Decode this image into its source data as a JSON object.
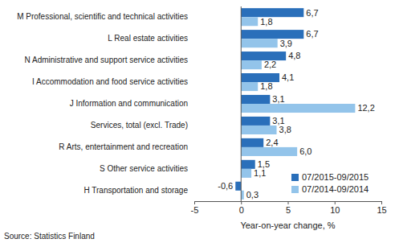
{
  "chart_data": {
    "type": "bar",
    "orientation": "horizontal",
    "categories": [
      "M Professional, scientific and technical activities",
      "L Real estate activities",
      "N Administrative and support service activities",
      "I Accommodation and food service activities",
      "J Information and communication",
      "Services, total (excl. Trade)",
      "R Arts, entertainment and recreation",
      "S Other service activities",
      "H Transportation and storage"
    ],
    "series": [
      {
        "name": "07/2015-09/2015",
        "color": "#2a6fba",
        "values": [
          6.7,
          6.7,
          4.8,
          4.1,
          3.1,
          3.1,
          2.4,
          1.5,
          -0.6
        ],
        "value_labels": [
          "6,7",
          "6,7",
          "4,8",
          "4,1",
          "3,1",
          "3,1",
          "2,4",
          "1,5",
          "-0,6"
        ]
      },
      {
        "name": "07/2014-09/2014",
        "color": "#93c4ea",
        "values": [
          1.8,
          3.9,
          2.2,
          1.8,
          12.2,
          3.8,
          6.0,
          1.1,
          0.3
        ],
        "value_labels": [
          "1,8",
          "3,9",
          "2,2",
          "1,8",
          "12,2",
          "3,8",
          "6,0",
          "1,1",
          "0,3"
        ]
      }
    ],
    "xlim": [
      -5,
      15
    ],
    "xticks": [
      -5,
      0,
      5,
      10,
      15
    ],
    "x_label": "Year-on-year change, %",
    "annotations": [
      "Source: Statistics Finland"
    ],
    "data_labels": true,
    "legend": "lower right",
    "grid": false
  }
}
